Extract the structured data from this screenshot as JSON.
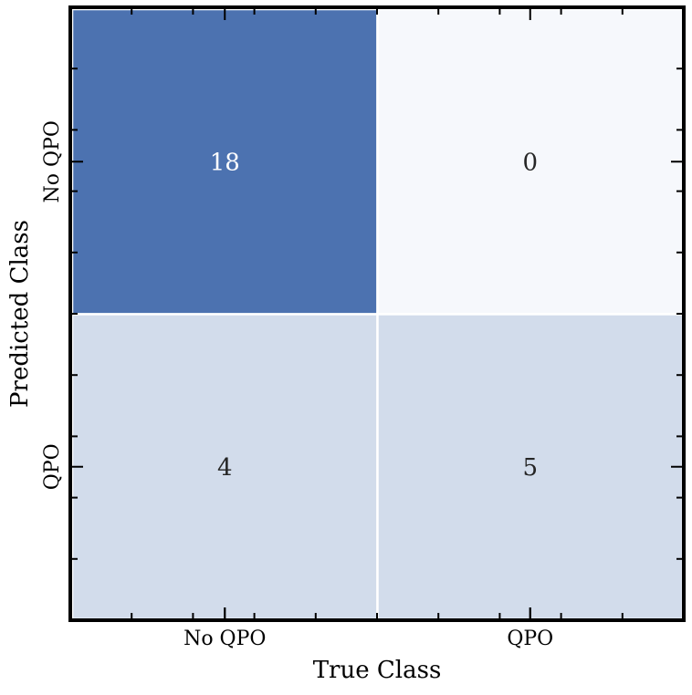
{
  "chart_data": {
    "type": "heatmap",
    "title": "",
    "xlabel": "True Class",
    "ylabel": "Predicted Class",
    "x_categories": [
      "No QPO",
      "QPO"
    ],
    "y_categories": [
      "No QPO",
      "QPO"
    ],
    "values": [
      [
        18,
        0
      ],
      [
        4,
        5
      ]
    ],
    "colormap": "Blues",
    "cell_colors": [
      [
        "#4c72b0",
        "#f6f8fc"
      ],
      [
        "#d2dceb",
        "#d2dceb"
      ]
    ],
    "annotation_colors": [
      [
        "#ffffff",
        "#262626"
      ],
      [
        "#262626",
        "#262626"
      ]
    ],
    "grid": false,
    "colorbar": false
  }
}
